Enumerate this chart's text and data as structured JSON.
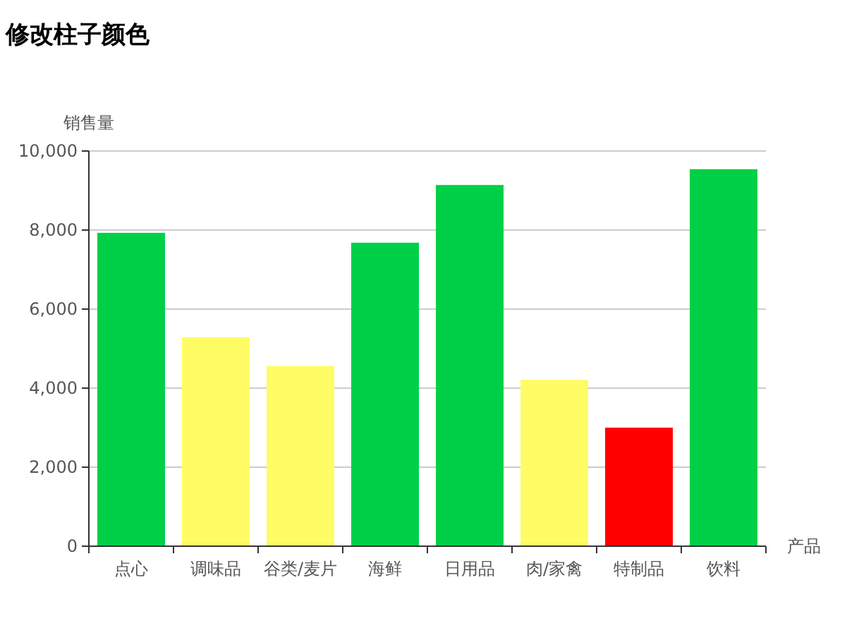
{
  "chart_data": {
    "type": "bar",
    "title": "修改柱子颜色",
    "xlabel": "产品",
    "ylabel": "销售量",
    "categories": [
      "点心",
      "调味品",
      "谷类/麦片",
      "海鲜",
      "日用品",
      "肉/家禽",
      "特制品",
      "饮料"
    ],
    "values": [
      7930,
      5290,
      4560,
      7680,
      9140,
      4210,
      3000,
      9540
    ],
    "colors": [
      "#00d048",
      "#fffc66",
      "#fffc66",
      "#00d048",
      "#00d048",
      "#fffc66",
      "#ff0000",
      "#00d048"
    ],
    "ylim": [
      0,
      10000
    ],
    "yticks": [
      0,
      {
        "value": 2000,
        "label": "2,000"
      },
      {
        "value": 4000,
        "label": "4,000"
      },
      {
        "value": 6000,
        "label": "6,000"
      },
      {
        "value": 8000,
        "label": "8,000"
      },
      {
        "value": 10000,
        "label": "10,000"
      }
    ],
    "grid": "y"
  }
}
